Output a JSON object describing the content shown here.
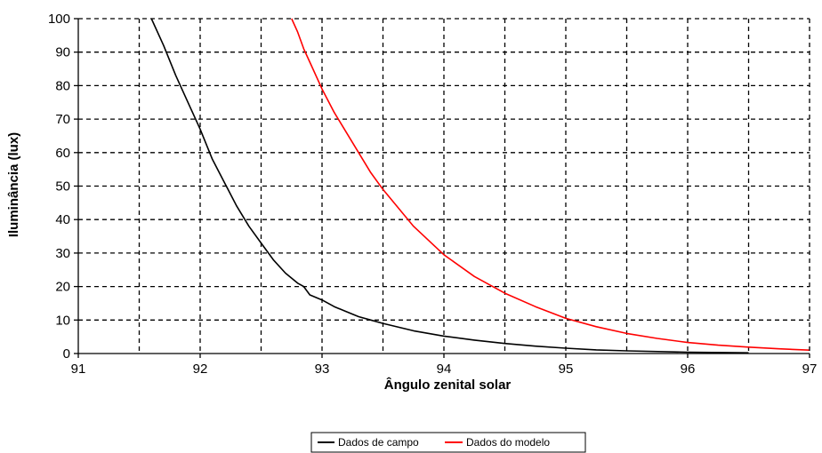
{
  "chart_data": {
    "type": "line",
    "title": "",
    "xlabel": "Ângulo zenital solar",
    "ylabel": "Iluminância (lux)",
    "xlim": [
      91,
      97
    ],
    "ylim": [
      0,
      100
    ],
    "x_ticks": [
      "91",
      "92",
      "93",
      "94",
      "95",
      "96",
      "97"
    ],
    "y_ticks": [
      "0",
      "10",
      "20",
      "30",
      "40",
      "50",
      "60",
      "70",
      "80",
      "90",
      "100"
    ],
    "grid": true,
    "grid_style": "dashed",
    "legend_position": "bottom-center",
    "series": [
      {
        "name": "Dados de campo",
        "color": "#000000",
        "x": [
          91.6,
          91.7,
          91.8,
          91.9,
          92.0,
          92.1,
          92.2,
          92.3,
          92.4,
          92.5,
          92.6,
          92.7,
          92.8,
          92.85,
          92.9,
          93.0,
          93.1,
          93.2,
          93.3,
          93.4,
          93.5,
          93.75,
          94.0,
          94.25,
          94.5,
          94.75,
          95.0,
          95.25,
          95.5,
          96.0,
          96.5
        ],
        "y": [
          100,
          92,
          83,
          75,
          67,
          58,
          51,
          44,
          38,
          33,
          28,
          24,
          21,
          20,
          17.5,
          16,
          14,
          12.5,
          11,
          10,
          9,
          6.8,
          5.2,
          4.0,
          3.0,
          2.2,
          1.6,
          1.1,
          0.8,
          0.4,
          0.2
        ]
      },
      {
        "name": "Dados do modelo",
        "color": "#ff0000",
        "x": [
          92.75,
          92.8,
          92.85,
          92.9,
          93.0,
          93.1,
          93.2,
          93.3,
          93.4,
          93.5,
          93.75,
          94.0,
          94.25,
          94.5,
          94.75,
          95.0,
          95.25,
          95.5,
          95.75,
          96.0,
          96.25,
          96.5,
          96.75,
          97.0
        ],
        "y": [
          100,
          96,
          91,
          87,
          79,
          72,
          66,
          60,
          54,
          49,
          38,
          29.5,
          23,
          18,
          14,
          10.5,
          8,
          6,
          4.5,
          3.3,
          2.5,
          1.9,
          1.4,
          1.0
        ]
      }
    ]
  }
}
